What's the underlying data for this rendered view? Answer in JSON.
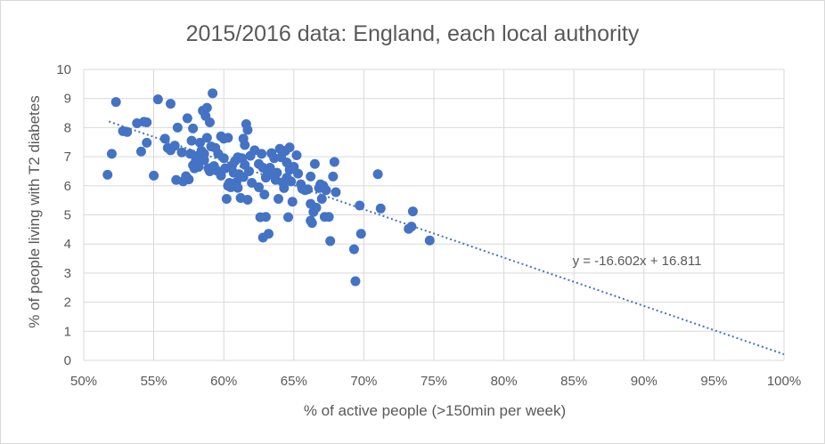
{
  "chart_data": {
    "type": "scatter",
    "title": "2015/2016 data: England, each local authority",
    "xlabel": "% of active people (>150min per week)",
    "ylabel": "% of people living with T2 diabetes",
    "xlim": [
      0.5,
      1.0
    ],
    "ylim": [
      0,
      10
    ],
    "x_ticks": [
      "50%",
      "55%",
      "60%",
      "65%",
      "70%",
      "75%",
      "80%",
      "85%",
      "90%",
      "95%",
      "100%"
    ],
    "y_ticks": [
      "0",
      "1",
      "2",
      "3",
      "4",
      "5",
      "6",
      "7",
      "8",
      "9",
      "10"
    ],
    "grid": true,
    "marker_color": "#4472c4",
    "trendline": {
      "equation": "y = -16.602x + 16.811",
      "slope": -16.602,
      "intercept": 16.811,
      "x_range": [
        0.518,
        1.0
      ],
      "style": "dotted",
      "color": "#4472c4"
    },
    "points": [
      [
        0.517,
        6.38
      ],
      [
        0.52,
        7.1
      ],
      [
        0.523,
        8.88
      ],
      [
        0.528,
        7.88
      ],
      [
        0.531,
        7.85
      ],
      [
        0.538,
        8.15
      ],
      [
        0.541,
        7.18
      ],
      [
        0.543,
        8.2
      ],
      [
        0.545,
        7.48
      ],
      [
        0.545,
        8.18
      ],
      [
        0.55,
        6.35
      ],
      [
        0.553,
        8.97
      ],
      [
        0.558,
        7.62
      ],
      [
        0.56,
        7.3
      ],
      [
        0.562,
        8.82
      ],
      [
        0.562,
        7.22
      ],
      [
        0.565,
        7.38
      ],
      [
        0.566,
        6.2
      ],
      [
        0.567,
        8.0
      ],
      [
        0.57,
        7.15
      ],
      [
        0.571,
        6.15
      ],
      [
        0.573,
        6.33
      ],
      [
        0.574,
        8.32
      ],
      [
        0.575,
        6.22
      ],
      [
        0.576,
        7.1
      ],
      [
        0.577,
        7.55
      ],
      [
        0.578,
        7.97
      ],
      [
        0.578,
        6.7
      ],
      [
        0.579,
        6.6
      ],
      [
        0.58,
        6.85
      ],
      [
        0.58,
        7.02
      ],
      [
        0.582,
        6.65
      ],
      [
        0.583,
        7.48
      ],
      [
        0.584,
        7.2
      ],
      [
        0.585,
        8.58
      ],
      [
        0.586,
        7.1
      ],
      [
        0.586,
        6.88
      ],
      [
        0.587,
        8.4
      ],
      [
        0.588,
        8.68
      ],
      [
        0.588,
        7.65
      ],
      [
        0.589,
        6.6
      ],
      [
        0.59,
        6.5
      ],
      [
        0.59,
        8.18
      ],
      [
        0.591,
        7.35
      ],
      [
        0.592,
        9.18
      ],
      [
        0.593,
        6.68
      ],
      [
        0.594,
        7.3
      ],
      [
        0.595,
        6.52
      ],
      [
        0.596,
        7.1
      ],
      [
        0.598,
        7.7
      ],
      [
        0.598,
        6.35
      ],
      [
        0.6,
        6.95
      ],
      [
        0.6,
        7.62
      ],
      [
        0.601,
        6.6
      ],
      [
        0.602,
        5.55
      ],
      [
        0.603,
        7.65
      ],
      [
        0.603,
        6.0
      ],
      [
        0.604,
        6.1
      ],
      [
        0.605,
        5.95
      ],
      [
        0.606,
        6.7
      ],
      [
        0.607,
        6.45
      ],
      [
        0.608,
        6.85
      ],
      [
        0.609,
        6.12
      ],
      [
        0.61,
        6.98
      ],
      [
        0.61,
        5.93
      ],
      [
        0.611,
        6.4
      ],
      [
        0.612,
        5.58
      ],
      [
        0.613,
        6.95
      ],
      [
        0.614,
        7.62
      ],
      [
        0.614,
        6.3
      ],
      [
        0.615,
        7.4
      ],
      [
        0.615,
        6.72
      ],
      [
        0.616,
        8.12
      ],
      [
        0.617,
        7.92
      ],
      [
        0.617,
        5.52
      ],
      [
        0.618,
        6.5
      ],
      [
        0.619,
        7.03
      ],
      [
        0.62,
        6.1
      ],
      [
        0.622,
        7.22
      ],
      [
        0.625,
        6.75
      ],
      [
        0.625,
        5.95
      ],
      [
        0.626,
        4.92
      ],
      [
        0.627,
        7.1
      ],
      [
        0.628,
        6.62
      ],
      [
        0.628,
        4.22
      ],
      [
        0.629,
        5.7
      ],
      [
        0.63,
        4.93
      ],
      [
        0.63,
        6.28
      ],
      [
        0.631,
        6.5
      ],
      [
        0.632,
        4.35
      ],
      [
        0.633,
        6.62
      ],
      [
        0.634,
        7.12
      ],
      [
        0.635,
        6.38
      ],
      [
        0.636,
        6.95
      ],
      [
        0.637,
        6.2
      ],
      [
        0.638,
        6.45
      ],
      [
        0.639,
        5.55
      ],
      [
        0.64,
        7.27
      ],
      [
        0.641,
        6.98
      ],
      [
        0.642,
        6.12
      ],
      [
        0.643,
        5.92
      ],
      [
        0.644,
        7.2
      ],
      [
        0.645,
        6.8
      ],
      [
        0.645,
        6.28
      ],
      [
        0.646,
        4.92
      ],
      [
        0.647,
        7.32
      ],
      [
        0.647,
        6.55
      ],
      [
        0.648,
        6.15
      ],
      [
        0.649,
        5.45
      ],
      [
        0.65,
        6.65
      ],
      [
        0.652,
        7.05
      ],
      [
        0.653,
        6.42
      ],
      [
        0.655,
        6.05
      ],
      [
        0.656,
        5.9
      ],
      [
        0.658,
        5.85
      ],
      [
        0.66,
        5.88
      ],
      [
        0.662,
        6.32
      ],
      [
        0.662,
        5.38
      ],
      [
        0.662,
        4.8
      ],
      [
        0.663,
        4.72
      ],
      [
        0.664,
        5.1
      ],
      [
        0.665,
        6.75
      ],
      [
        0.666,
        5.25
      ],
      [
        0.668,
        5.92
      ],
      [
        0.669,
        6.05
      ],
      [
        0.67,
        5.55
      ],
      [
        0.671,
        6.0
      ],
      [
        0.672,
        4.93
      ],
      [
        0.673,
        5.85
      ],
      [
        0.675,
        4.93
      ],
      [
        0.676,
        4.1
      ],
      [
        0.678,
        6.32
      ],
      [
        0.679,
        6.82
      ],
      [
        0.68,
        5.78
      ],
      [
        0.693,
        3.82
      ],
      [
        0.694,
        2.72
      ],
      [
        0.697,
        5.32
      ],
      [
        0.698,
        4.35
      ],
      [
        0.71,
        6.4
      ],
      [
        0.712,
        5.22
      ],
      [
        0.732,
        4.52
      ],
      [
        0.734,
        4.6
      ],
      [
        0.735,
        5.12
      ],
      [
        0.747,
        4.12
      ]
    ]
  }
}
